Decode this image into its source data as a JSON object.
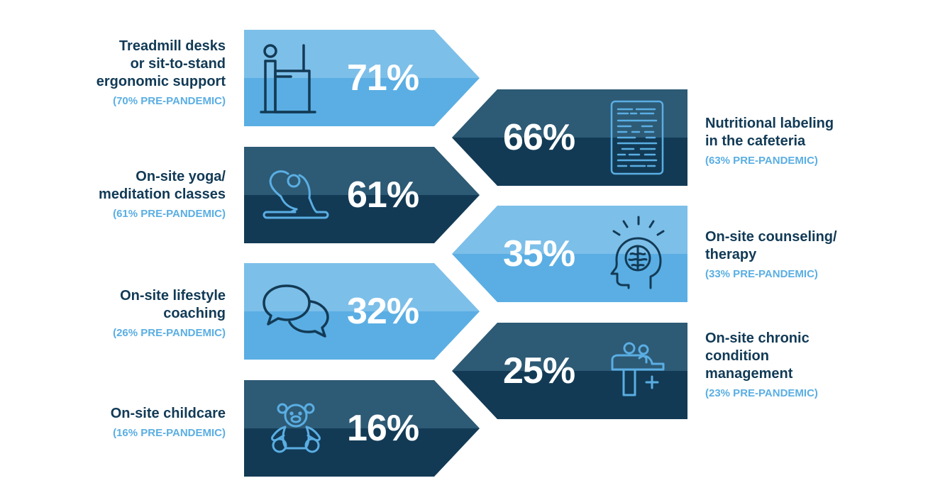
{
  "colors": {
    "light_top": "#7cbfe9",
    "light_bottom": "#5aaee3",
    "dark_top": "#2d5a75",
    "dark_bottom": "#123a55",
    "label_dark": "#113a56",
    "label_light": "#5aaee3"
  },
  "items": [
    {
      "percent": "71%",
      "label_lines": [
        "Treadmill desks",
        "or sit-to-stand",
        "ergonomic support"
      ],
      "label_line_1": "Treadmill desks",
      "label_line_2": "or sit-to-stand",
      "label_line_3": "ergonomic support",
      "pre": "(70% PRE-PANDEMIC)",
      "icon": "treadmill-desk-icon",
      "side": "left",
      "theme": "light",
      "pct_value": 71,
      "pre_value": 70
    },
    {
      "percent": "66%",
      "label_line_1": "Nutritional labeling",
      "label_line_2": "in the cafeteria",
      "pre": "(63% PRE-PANDEMIC)",
      "icon": "nutrition-label-icon",
      "side": "right",
      "theme": "dark",
      "pct_value": 66,
      "pre_value": 63
    },
    {
      "percent": "61%",
      "label_line_1": "On-site yoga/",
      "label_line_2": "meditation classes",
      "pre": "(61% PRE-PANDEMIC)",
      "icon": "yoga-icon",
      "side": "left",
      "theme": "dark",
      "pct_value": 61,
      "pre_value": 61
    },
    {
      "percent": "35%",
      "label_line_1": "On-site counseling/",
      "label_line_2": "therapy",
      "pre": "(33% PRE-PANDEMIC)",
      "icon": "brain-head-icon",
      "side": "right",
      "theme": "light",
      "pct_value": 35,
      "pre_value": 33
    },
    {
      "percent": "32%",
      "label_line_1": "On-site lifestyle",
      "label_line_2": "coaching",
      "pre": "(26% PRE-PANDEMIC)",
      "icon": "chat-bubbles-icon",
      "side": "left",
      "theme": "light",
      "pct_value": 32,
      "pre_value": 26
    },
    {
      "percent": "25%",
      "label_line_1": "On-site chronic",
      "label_line_2": "condition",
      "label_line_3": "management",
      "pre": "(23% PRE-PANDEMIC)",
      "icon": "patient-doctor-icon",
      "side": "right",
      "theme": "dark",
      "pct_value": 25,
      "pre_value": 23
    },
    {
      "percent": "16%",
      "label_line_1": "On-site childcare",
      "pre": "(16% PRE-PANDEMIC)",
      "icon": "teddy-bear-icon",
      "side": "left",
      "theme": "dark",
      "pct_value": 16,
      "pre_value": 16
    }
  ]
}
